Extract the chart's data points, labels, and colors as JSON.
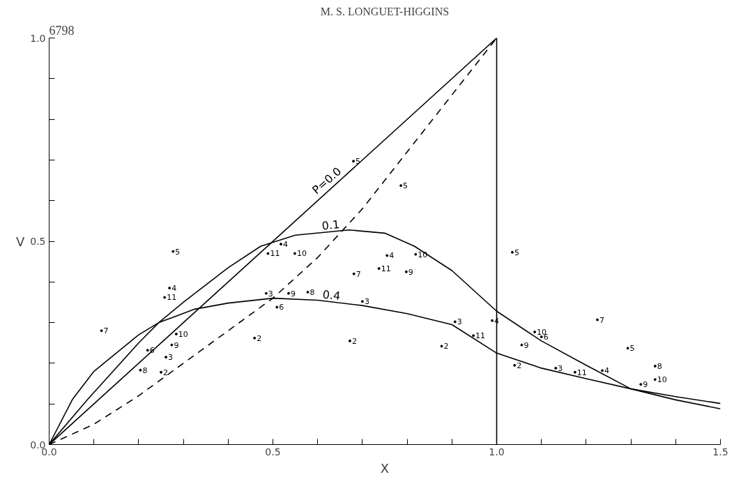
{
  "chart_data": {
    "type": "line",
    "title": "M. S. LONGUET-HIGGINS",
    "xlabel": "X",
    "ylabel": "V",
    "xlim": [
      0,
      1.5
    ],
    "ylim": [
      0,
      1.0
    ],
    "xticks": [
      {
        "value": 0,
        "label": "0.0"
      },
      {
        "value": 0.1,
        "label": null
      },
      {
        "value": 0.2,
        "label": null
      },
      {
        "value": 0.3,
        "label": null
      },
      {
        "value": 0.4,
        "label": null
      },
      {
        "value": 0.5,
        "label": "0.5"
      },
      {
        "value": 0.6,
        "label": null
      },
      {
        "value": 0.7,
        "label": null
      },
      {
        "value": 0.8,
        "label": null
      },
      {
        "value": 0.9,
        "label": null
      },
      {
        "value": 1.0,
        "label": "1.0"
      },
      {
        "value": 1.1,
        "label": null
      },
      {
        "value": 1.2,
        "label": null
      },
      {
        "value": 1.3,
        "label": null
      },
      {
        "value": 1.4,
        "label": null
      },
      {
        "value": 1.5,
        "label": "1.5"
      }
    ],
    "yticks": [
      {
        "value": 0,
        "label": "0.0"
      },
      {
        "value": 0.1,
        "label": null
      },
      {
        "value": 0.2,
        "label": null
      },
      {
        "value": 0.3,
        "label": null
      },
      {
        "value": 0.4,
        "label": null
      },
      {
        "value": 0.5,
        "label": "0.5"
      },
      {
        "value": 0.6,
        "label": null
      },
      {
        "value": 0.7,
        "label": null
      },
      {
        "value": 0.8,
        "label": null
      },
      {
        "value": 0.9,
        "label": null
      },
      {
        "value": 1.0,
        "label": "1.0"
      }
    ],
    "grid": false,
    "legend": false,
    "marker": "none",
    "series": [
      {
        "name": "P=0.0",
        "color": "#000000",
        "line_style": "solid",
        "x": [
          0,
          1.0,
          1.0
        ],
        "values": [
          0,
          1.0,
          0
        ]
      },
      {
        "color": "#000000",
        "line_style": "dashed",
        "x": [
          0,
          0.1,
          0.2,
          0.3,
          0.4,
          0.5,
          0.6,
          0.7,
          0.8,
          0.9,
          1.0
        ],
        "values": [
          0,
          0.05,
          0.12,
          0.2,
          0.28,
          0.36,
          0.46,
          0.58,
          0.72,
          0.86,
          1.0
        ]
      },
      {
        "name": "0.1",
        "color": "#000000",
        "line_style": "solid",
        "x": [
          0,
          0.086,
          0.2,
          0.245,
          0.3,
          0.4,
          0.473,
          0.55,
          0.67,
          0.75,
          0.816,
          0.9,
          1.0,
          1.1,
          1.2,
          1.3,
          1.4,
          1.5
        ],
        "values": [
          0,
          0.111,
          0.25,
          0.3,
          0.35,
          0.435,
          0.488,
          0.515,
          0.528,
          0.52,
          0.488,
          0.428,
          0.328,
          0.255,
          0.195,
          0.137,
          0.11,
          0.088
        ]
      },
      {
        "name": "0.4",
        "color": "#000000",
        "line_style": "solid",
        "x": [
          0,
          0.052,
          0.1,
          0.2,
          0.245,
          0.325,
          0.4,
          0.5,
          0.6,
          0.7,
          0.8,
          0.9,
          1.0,
          1.1,
          1.2,
          1.3,
          1.4,
          1.5
        ],
        "values": [
          0,
          0.111,
          0.18,
          0.27,
          0.3,
          0.333,
          0.348,
          0.36,
          0.355,
          0.342,
          0.322,
          0.295,
          0.225,
          0.188,
          0.162,
          0.137,
          0.118,
          0.101
        ]
      },
      {
        "type": "scatter",
        "name": "2",
        "marker": "circle",
        "color": "#000000",
        "x": [
          0.25,
          0.459,
          0.672,
          0.877,
          1.04
        ],
        "values": [
          0.178,
          0.262,
          0.255,
          0.242,
          0.195
        ]
      },
      {
        "type": "scatter",
        "name": "3",
        "marker": "circle",
        "color": "#000000",
        "x": [
          0.261,
          0.485,
          0.7,
          0.907,
          1.132
        ],
        "values": [
          0.215,
          0.372,
          0.352,
          0.302,
          0.188
        ]
      },
      {
        "type": "scatter",
        "name": "4",
        "marker": "circle",
        "color": "#000000",
        "x": [
          0.269,
          0.518,
          0.755,
          0.99,
          1.236
        ],
        "values": [
          0.385,
          0.493,
          0.465,
          0.305,
          0.182
        ]
      },
      {
        "type": "scatter",
        "name": "5",
        "marker": "circle",
        "color": "#000000",
        "x": [
          0.277,
          0.68,
          0.786,
          1.035,
          1.293
        ],
        "values": [
          0.475,
          0.697,
          0.637,
          0.473,
          0.237
        ]
      },
      {
        "type": "scatter",
        "name": "6",
        "marker": "circle",
        "color": "#000000",
        "x": [
          0.22,
          0.509,
          1.1
        ],
        "values": [
          0.232,
          0.338,
          0.265
        ]
      },
      {
        "type": "scatter",
        "name": "7",
        "marker": "circle",
        "color": "#000000",
        "x": [
          0.117,
          0.681,
          1.225
        ],
        "values": [
          0.28,
          0.42,
          0.307
        ]
      },
      {
        "type": "scatter",
        "name": "8",
        "marker": "circle",
        "color": "#000000",
        "x": [
          0.204,
          0.578,
          1.354
        ],
        "values": [
          0.183,
          0.375,
          0.193
        ]
      },
      {
        "type": "scatter",
        "name": "9",
        "marker": "circle",
        "color": "#000000",
        "x": [
          0.274,
          0.535,
          0.798,
          1.056,
          1.322
        ],
        "values": [
          0.245,
          0.372,
          0.425,
          0.245,
          0.148
        ]
      },
      {
        "type": "scatter",
        "name": "10",
        "marker": "circle",
        "color": "#000000",
        "x": [
          0.284,
          0.549,
          0.819,
          1.085,
          1.354
        ],
        "values": [
          0.272,
          0.47,
          0.468,
          0.277,
          0.16
        ]
      },
      {
        "type": "scatter",
        "name": "11",
        "marker": "circle",
        "color": "#000000",
        "x": [
          0.258,
          0.489,
          0.737,
          0.948,
          1.175
        ],
        "values": [
          0.362,
          0.47,
          0.433,
          0.268,
          0.178
        ]
      }
    ],
    "annotations": [
      "6798"
    ]
  }
}
